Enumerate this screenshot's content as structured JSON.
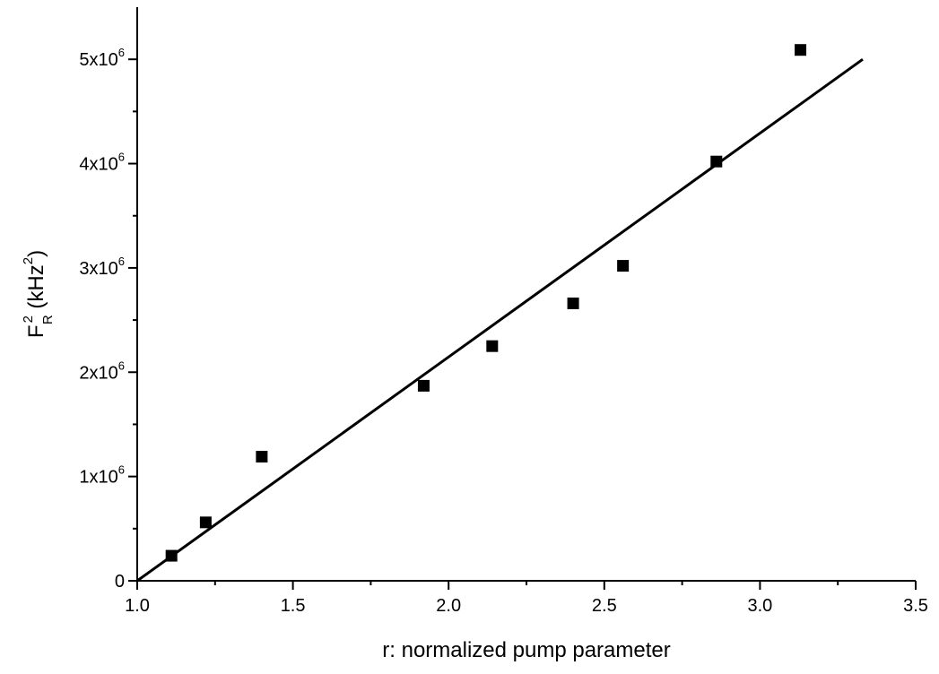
{
  "chart_data": {
    "type": "scatter",
    "xlabel": "r: normalized pump parameter",
    "ylabel": {
      "base": "F",
      "sup": "2",
      "sub": "R",
      "units_prefix": " (kHz",
      "units_sup": "2",
      "units_suffix": ")"
    },
    "xlim": [
      1.0,
      3.5
    ],
    "ylim": [
      0,
      5500000
    ],
    "x_ticks": [
      {
        "value": 1.0,
        "label": "1.0"
      },
      {
        "value": 1.5,
        "label": "1.5"
      },
      {
        "value": 2.0,
        "label": "2.0"
      },
      {
        "value": 2.5,
        "label": "2.5"
      },
      {
        "value": 3.0,
        "label": "3.0"
      },
      {
        "value": 3.5,
        "label": "3.5"
      }
    ],
    "x_minor_ticks": [
      1.25,
      1.75,
      2.25,
      2.75,
      3.25
    ],
    "y_ticks": [
      {
        "value": 0,
        "label": "0",
        "exp": ""
      },
      {
        "value": 1000000,
        "label": "1x10",
        "exp": "6"
      },
      {
        "value": 2000000,
        "label": "2x10",
        "exp": "6"
      },
      {
        "value": 3000000,
        "label": "3x10",
        "exp": "6"
      },
      {
        "value": 4000000,
        "label": "4x10",
        "exp": "6"
      },
      {
        "value": 5000000,
        "label": "5x10",
        "exp": "6"
      }
    ],
    "y_minor_ticks": [
      500000,
      1500000,
      2500000,
      3500000,
      4500000
    ],
    "series": [
      {
        "marker": "square",
        "color": "#000000",
        "points": [
          {
            "x": 1.11,
            "y": 240000
          },
          {
            "x": 1.22,
            "y": 560000
          },
          {
            "x": 1.4,
            "y": 1190000
          },
          {
            "x": 1.92,
            "y": 1870000
          },
          {
            "x": 2.14,
            "y": 2250000
          },
          {
            "x": 2.4,
            "y": 2660000
          },
          {
            "x": 2.56,
            "y": 3020000
          },
          {
            "x": 2.86,
            "y": 4020000
          },
          {
            "x": 3.13,
            "y": 5090000
          }
        ]
      }
    ],
    "fit_line": {
      "color": "#000000",
      "x": [
        1.0,
        3.33
      ],
      "y": [
        0,
        5000000
      ]
    },
    "grid": false,
    "legend": "none"
  }
}
